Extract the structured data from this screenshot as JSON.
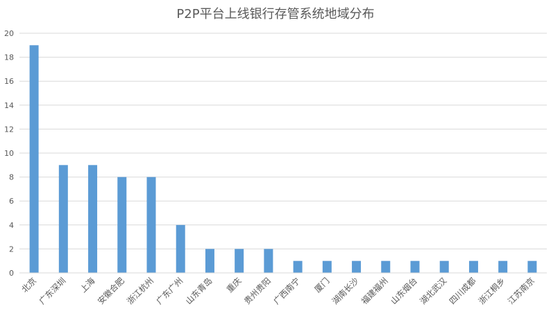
{
  "chart_data": {
    "type": "bar",
    "title": "P2P平台上线银行存管系统地域分布",
    "xlabel": "",
    "ylabel": "",
    "ylim": [
      0,
      20
    ],
    "yticks": [
      0,
      2,
      4,
      6,
      8,
      10,
      12,
      14,
      16,
      18,
      20
    ],
    "grid": true,
    "legend": "none",
    "bar_color": "#5B9BD5",
    "grid_color": "#D9D9D9",
    "categories": [
      "北京",
      "广东深圳",
      "上海",
      "安徽合肥",
      "浙江杭州",
      "广东广州",
      "山东青岛",
      "重庆",
      "贵州贵阳",
      "广西南宁",
      "厦门",
      "湖南长沙",
      "福建福州",
      "山东烟台",
      "湖北武汉",
      "四川成都",
      "浙江桐乡",
      "江苏南京"
    ],
    "values": [
      19,
      9,
      9,
      8,
      8,
      4,
      2,
      2,
      2,
      1,
      1,
      1,
      1,
      1,
      1,
      1,
      1,
      1
    ]
  }
}
